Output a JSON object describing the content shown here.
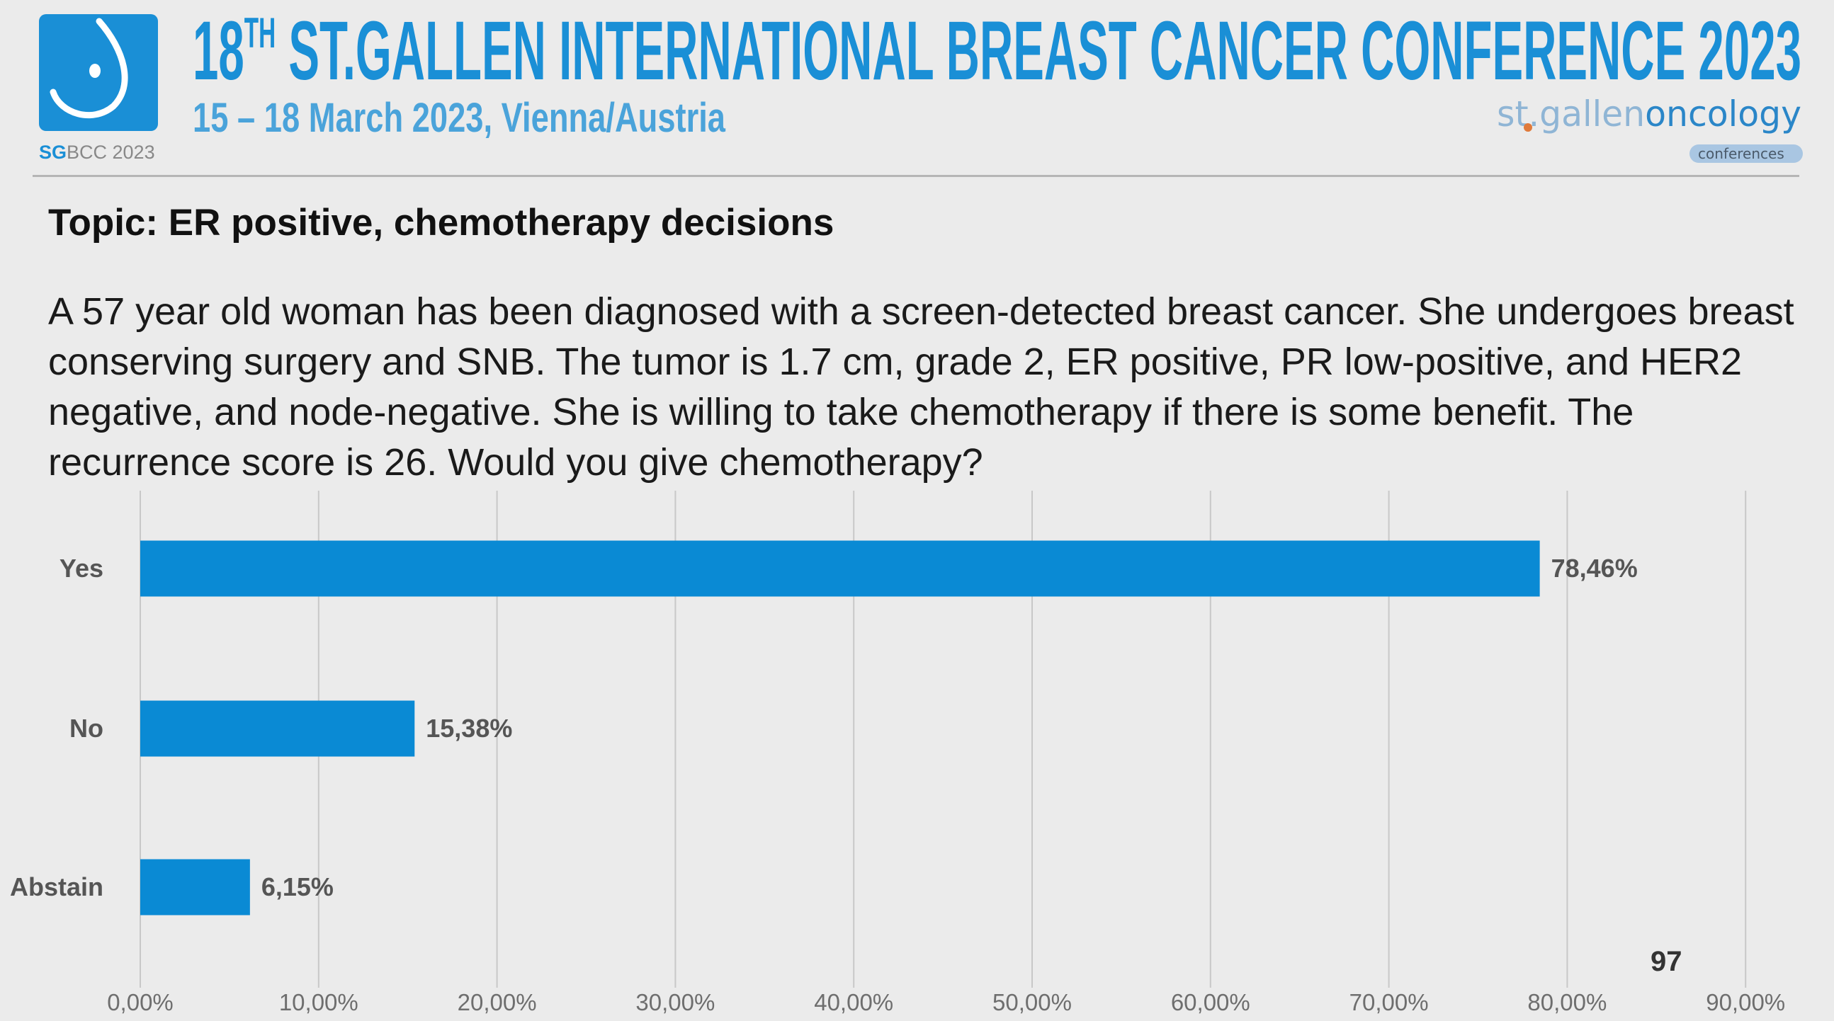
{
  "header": {
    "title_number": "18",
    "title_suffix": "TH",
    "title_rest": " ST.GALLEN INTERNATIONAL BREAST CANCER CONFERENCE 2023",
    "subtitle": "15 – 18 March 2023, Vienna/Austria",
    "logo_caption_bold": "SG",
    "logo_caption_rest": "BCC 2023",
    "partner_logo": {
      "part1": "st.gallen",
      "part2": "oncology",
      "tag": "conferences"
    }
  },
  "slide": {
    "topic": "Topic: ER positive, chemotherapy decisions",
    "question": "A 57 year old woman has been diagnosed with a screen-detected breast cancer. She undergoes breast conserving surgery and SNB. The tumor is 1.7 cm, grade 2, ER positive, PR low-positive, and HER2 negative, and node-negative. She is willing to take chemotherapy if there is some benefit. The recurrence score is 26. Would you give chemotherapy?",
    "page_number": "97"
  },
  "colors": {
    "brand": "#1a8fd6",
    "bar": "#0a8ad4",
    "background": "#ebebeb"
  },
  "chart_data": {
    "type": "bar",
    "orientation": "horizontal",
    "categories": [
      "Yes",
      "No",
      "Abstain"
    ],
    "values": [
      78.46,
      15.38,
      6.15
    ],
    "value_labels": [
      "78,46%",
      "15,38%",
      "6,15%"
    ],
    "xlim": [
      0,
      90
    ],
    "x_ticks": [
      0,
      10,
      20,
      30,
      40,
      50,
      60,
      70,
      80,
      90
    ],
    "x_tick_labels": [
      "0,00%",
      "10,00%",
      "20,00%",
      "30,00%",
      "40,00%",
      "50,00%",
      "60,00%",
      "70,00%",
      "80,00%",
      "90,00%"
    ],
    "grid": true,
    "title": "",
    "xlabel": "",
    "ylabel": ""
  }
}
